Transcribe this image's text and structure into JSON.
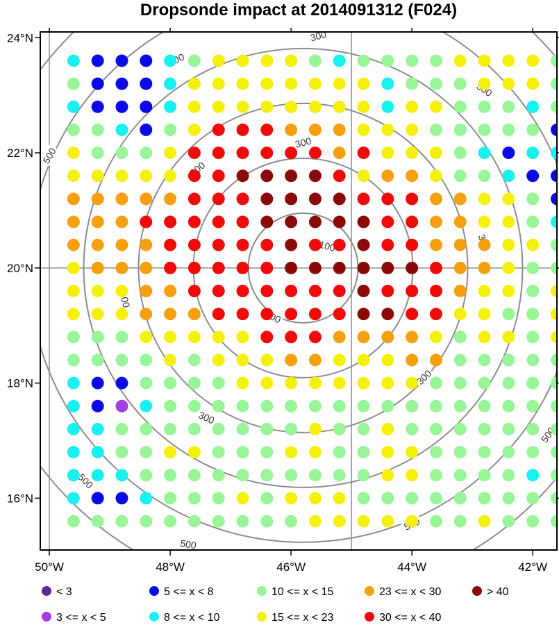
{
  "chart_data": {
    "type": "scatter",
    "title": "Dropsonde impact at 2014091312 (F024)",
    "xlim": [
      -50.15,
      -41.6
    ],
    "ylim": [
      15.1,
      24.1
    ],
    "x_ticks": [
      -50,
      -48,
      -46,
      -44,
      -42
    ],
    "x_tick_labels": [
      "50°W",
      "48°W",
      "46°W",
      "44°W",
      "42°W"
    ],
    "y_ticks": [
      16,
      18,
      20,
      22,
      24
    ],
    "y_tick_labels": [
      "16°N",
      "18°N",
      "20°N",
      "22°N",
      "24°N"
    ],
    "grid_lines": {
      "lon": [
        -50,
        -45
      ],
      "lat": [
        20
      ]
    },
    "center": {
      "lon": -45.8,
      "lat": 20.0
    },
    "contours": {
      "radii_km": [
        100,
        200,
        300,
        400,
        500,
        600
      ],
      "labels": [
        {
          "text": "100",
          "lon": -45.4,
          "lat": 20.38,
          "angle": 15
        },
        {
          "text": "100",
          "lon": -46.3,
          "lat": 19.15,
          "angle": 25
        },
        {
          "text": "300",
          "lon": -45.8,
          "lat": 22.18,
          "angle": -15
        },
        {
          "text": "300",
          "lon": -47.55,
          "lat": 21.72,
          "angle": -40
        },
        {
          "text": "300",
          "lon": -42.8,
          "lat": 20.45,
          "angle": 65
        },
        {
          "text": "300",
          "lon": -48.75,
          "lat": 19.45,
          "angle": 75
        },
        {
          "text": "300",
          "lon": -43.8,
          "lat": 18.1,
          "angle": -45
        },
        {
          "text": "300",
          "lon": -47.4,
          "lat": 17.4,
          "angle": 25
        },
        {
          "text": "300",
          "lon": -45.55,
          "lat": 24.03,
          "angle": -15
        },
        {
          "text": "500",
          "lon": -47.9,
          "lat": 23.62,
          "angle": -25
        },
        {
          "text": "500",
          "lon": -42.8,
          "lat": 23.1,
          "angle": 35
        },
        {
          "text": "500",
          "lon": -50.0,
          "lat": 21.95,
          "angle": -60
        },
        {
          "text": "500",
          "lon": -41.75,
          "lat": 17.1,
          "angle": -55
        },
        {
          "text": "500",
          "lon": -49.4,
          "lat": 16.3,
          "angle": 45
        },
        {
          "text": "500",
          "lon": -44.0,
          "lat": 15.55,
          "angle": -25
        },
        {
          "text": "500",
          "lon": -47.7,
          "lat": 15.2,
          "angle": 10
        }
      ]
    },
    "grid": {
      "lon_start": -49.6,
      "lon_step": 0.4,
      "ncols": 21,
      "lat_start": 23.6,
      "lat_step": -0.4,
      "nrows": 21,
      "rows": [
        "CBBBCGYYYYGCGGGGYYYYG",
        "GBBBCYYYYYYYYCGGGYYYG",
        "CBBBCYYYYYYYYCYYGGGCG",
        "GGCBGYRRROOOYYYGGGGGB",
        "YGGGYRRRRRRORYYYGCBCC",
        "YYYYYRRDDDDRYOOYGGCBB",
        "OOOOORRRDDDDRRROOYYGB",
        "OOORRRRRDDDDDRROOYYGC",
        "OOOORRRRRDRRDRROOOYYG",
        "YOOORRRRRDDDDDDROOYGG",
        "YYYOORRRRRRRDRRROYYGY",
        "YYYOOORRRRRRDDRRYYGGY",
        "GGGYYYYYRRROOOOYGYYGY",
        "GGGGYGYYYOOYYYOOGGGGG",
        "CBBGGGGYYYYYYYYGGGGGG",
        "CBPCGGGGGGGGGGGGGGGGG",
        "CCGGGGGGGGYGGYGGGGGGG",
        "CCGGYYGGGYYGGYYGGGGGG",
        "CCCGGGGGGGGGGYYGGGGCG",
        "CBBCGGGYGYYYGGGGGGGGG",
        "GGGGGGGGGGYYYYYGGYGGG"
      ]
    },
    "categories": {
      "V": {
        "label": "<  3",
        "color": "#5a2a8c"
      },
      "P": {
        "label": "3 <= x <  5",
        "color": "#a33de0"
      },
      "B": {
        "label": "5 <= x <  8",
        "color": "#0a0ae6"
      },
      "C": {
        "label": "8 <= x < 10",
        "color": "#19f0f0"
      },
      "G": {
        "label": "10 <= x < 15",
        "color": "#98f598"
      },
      "Y": {
        "label": "15 <= x < 23",
        "color": "#f5f00a"
      },
      "O": {
        "label": "23 <= x < 30",
        "color": "#f5a00c"
      },
      "R": {
        "label": "30 <= x < 40",
        "color": "#f00a0a"
      },
      "D": {
        "label": "> 40",
        "color": "#8a0a0a"
      }
    },
    "legend_order": [
      "V",
      "P",
      "B",
      "C",
      "G",
      "Y",
      "O",
      "R",
      "D"
    ],
    "legend_position": "bottom"
  }
}
